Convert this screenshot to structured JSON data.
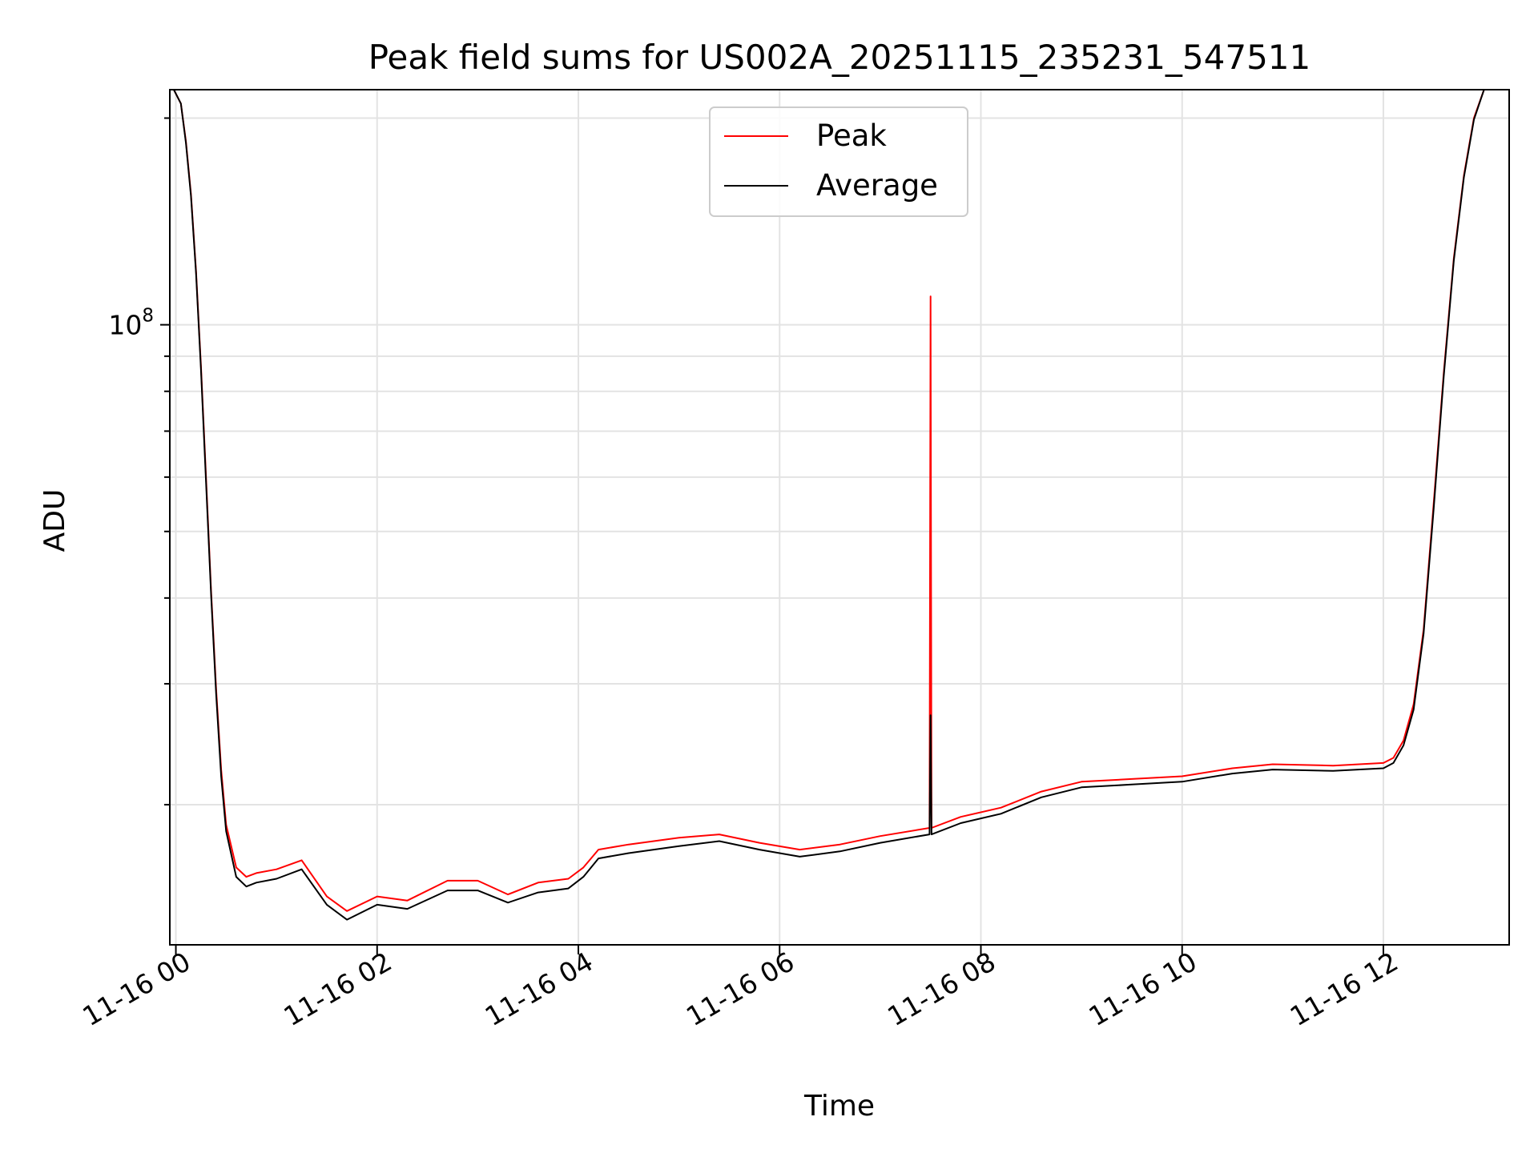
{
  "chart_data": {
    "type": "line",
    "title": "Peak field sums for US002A_20251115_235231_547511",
    "xlabel": "Time",
    "ylabel": "ADU",
    "y_scale": "log",
    "ylim": [
      12500000,
      220000000
    ],
    "xlim_hours": [
      -0.06,
      13.25
    ],
    "x_tick_labels": [
      "11-16 00",
      "11-16 02",
      "11-16 04",
      "11-16 06",
      "11-16 08",
      "11-16 10",
      "11-16 12"
    ],
    "x_tick_hours": [
      0,
      2,
      4,
      6,
      8,
      10,
      12
    ],
    "y_major_tick": {
      "value": 100000000,
      "base": "10",
      "exp": "8"
    },
    "y_minor_ticks": [
      20000000,
      30000000,
      40000000,
      50000000,
      60000000,
      70000000,
      80000000,
      90000000,
      200000000
    ],
    "grid": true,
    "legend_position": "upper center",
    "series": [
      {
        "name": "Peak",
        "color": "#ff0000",
        "x_hours": [
          -0.02,
          0.05,
          0.1,
          0.15,
          0.2,
          0.25,
          0.3,
          0.35,
          0.4,
          0.45,
          0.5,
          0.6,
          0.7,
          0.8,
          1.0,
          1.25,
          1.5,
          1.7,
          2.0,
          2.3,
          2.7,
          3.0,
          3.3,
          3.6,
          3.9,
          4.05,
          4.2,
          4.5,
          5.0,
          5.4,
          5.8,
          6.2,
          6.6,
          7.0,
          7.49,
          7.5,
          7.51,
          7.8,
          8.2,
          8.6,
          9.0,
          9.5,
          10.0,
          10.5,
          10.9,
          11.5,
          12.0,
          12.1,
          12.2,
          12.3,
          12.4,
          12.5,
          12.6,
          12.7,
          12.8,
          12.9,
          13.0,
          13.05
        ],
        "values": [
          220000000,
          210000000,
          185000000,
          155000000,
          120000000,
          87000000,
          60000000,
          41000000,
          29500000,
          22500000,
          18700000,
          16200000,
          15700000,
          15900000,
          16100000,
          16600000,
          14700000,
          14000000,
          14700000,
          14500000,
          15500000,
          15500000,
          14800000,
          15400000,
          15600000,
          16200000,
          17200000,
          17500000,
          17900000,
          18100000,
          17600000,
          17200000,
          17500000,
          18000000,
          18500000,
          110000000,
          18500000,
          19200000,
          19800000,
          20900000,
          21600000,
          21800000,
          22000000,
          22600000,
          22900000,
          22800000,
          23000000,
          23400000,
          24800000,
          28000000,
          36000000,
          55000000,
          85000000,
          125000000,
          165000000,
          200000000,
          220000000,
          220000000
        ]
      },
      {
        "name": "Average",
        "color": "#000000",
        "x_hours": [
          -0.02,
          0.05,
          0.1,
          0.15,
          0.2,
          0.25,
          0.3,
          0.35,
          0.4,
          0.45,
          0.5,
          0.6,
          0.7,
          0.8,
          1.0,
          1.25,
          1.5,
          1.7,
          2.0,
          2.3,
          2.7,
          3.0,
          3.3,
          3.6,
          3.9,
          4.05,
          4.2,
          4.5,
          5.0,
          5.4,
          5.8,
          6.2,
          6.6,
          7.0,
          7.49,
          7.5,
          7.51,
          7.8,
          8.2,
          8.6,
          9.0,
          9.5,
          10.0,
          10.5,
          10.9,
          11.5,
          12.0,
          12.1,
          12.2,
          12.3,
          12.4,
          12.5,
          12.6,
          12.7,
          12.8,
          12.9,
          13.0,
          13.05
        ],
        "values": [
          220000000,
          210000000,
          184000000,
          154000000,
          119000000,
          86000000,
          59000000,
          40500000,
          29000000,
          22000000,
          18300000,
          15700000,
          15200000,
          15400000,
          15600000,
          16100000,
          14300000,
          13600000,
          14300000,
          14100000,
          15000000,
          15000000,
          14400000,
          14900000,
          15100000,
          15700000,
          16700000,
          17000000,
          17400000,
          17700000,
          17200000,
          16800000,
          17100000,
          17600000,
          18100000,
          27000000,
          18100000,
          18800000,
          19400000,
          20500000,
          21200000,
          21400000,
          21600000,
          22200000,
          22500000,
          22400000,
          22600000,
          23000000,
          24400000,
          27500000,
          35500000,
          54000000,
          84000000,
          124000000,
          164000000,
          199000000,
          220000000,
          220000000
        ]
      }
    ]
  }
}
